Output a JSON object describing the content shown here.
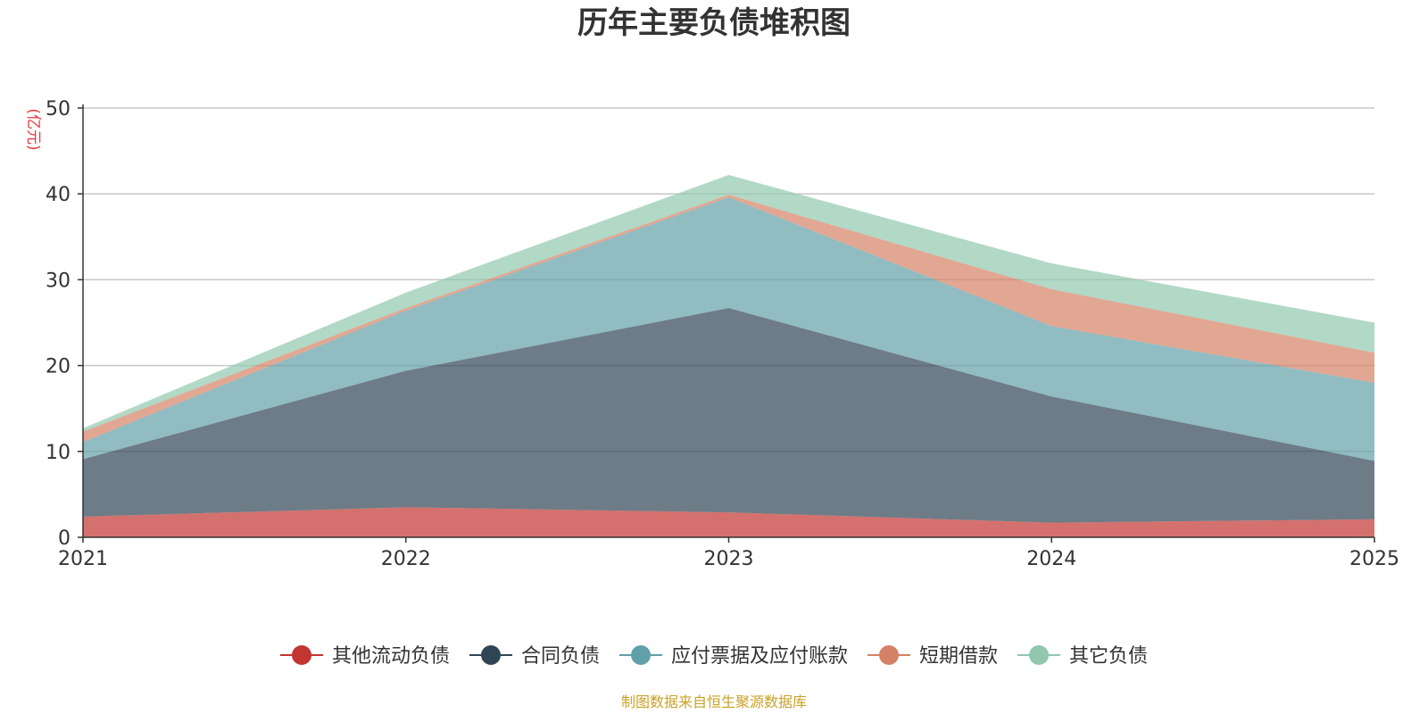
{
  "chart_data": {
    "type": "area",
    "stacked": true,
    "title": "历年主要负债堆积图",
    "ylabel": "(亿元)",
    "xlabel": "",
    "x": [
      "2021",
      "2022",
      "2023",
      "2024",
      "2025"
    ],
    "ylim": [
      0,
      50
    ],
    "yticks": [
      "0",
      "10",
      "20",
      "30",
      "40",
      "50"
    ],
    "grid": true,
    "legend_position": "bottom",
    "series": [
      {
        "name": "其他流动负债",
        "color": "#c23531",
        "values": [
          2.4,
          3.5,
          2.9,
          1.7,
          2.1
        ]
      },
      {
        "name": "合同负债",
        "color": "#2f4554",
        "values": [
          6.7,
          15.9,
          23.8,
          14.7,
          6.8
        ]
      },
      {
        "name": "应付票据及应付账款",
        "color": "#61a0a8",
        "values": [
          2.0,
          7.0,
          12.9,
          8.2,
          9.1
        ]
      },
      {
        "name": "短期借款",
        "color": "#d48265",
        "values": [
          1.2,
          0.3,
          0.3,
          4.3,
          3.5
        ]
      },
      {
        "name": "其它负债",
        "color": "#91c7ae",
        "values": [
          0.4,
          1.8,
          2.3,
          3.0,
          3.5
        ]
      }
    ],
    "source_note": "制图数据来自恒生聚源数据库"
  }
}
